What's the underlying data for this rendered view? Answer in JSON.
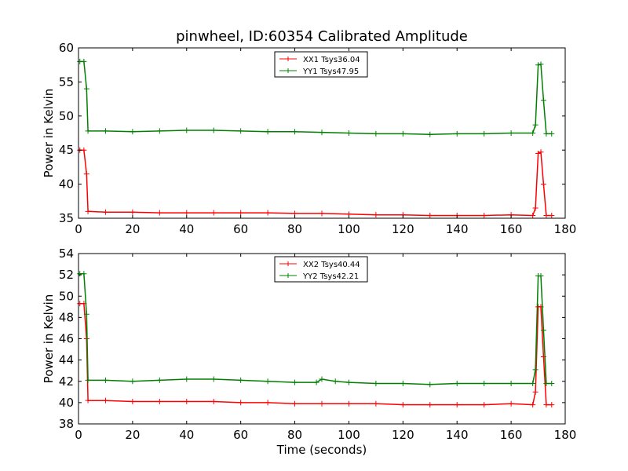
{
  "figure_title": "pinwheel, ID:60354 Calibrated Amplitude",
  "colors": {
    "red": "#ff0000",
    "green": "#008000"
  },
  "chart_data": [
    {
      "type": "line",
      "title": "pinwheel, ID:60354 Calibrated Amplitude",
      "xlabel": "",
      "ylabel": "Power in Kelvin",
      "xlim": [
        0,
        180
      ],
      "ylim": [
        35,
        60
      ],
      "xticks": [
        0,
        20,
        40,
        60,
        80,
        100,
        120,
        140,
        160,
        180
      ],
      "yticks": [
        35,
        40,
        45,
        50,
        55,
        60
      ],
      "grid": false,
      "legend_position": "top-center",
      "marker": "+",
      "series": [
        {
          "name": "XX1 Tsys36.04",
          "color": "#ff0000",
          "x": [
            0.5,
            2,
            3,
            3.5,
            10,
            20,
            30,
            40,
            50,
            60,
            70,
            80,
            90,
            100,
            110,
            120,
            130,
            140,
            150,
            160,
            168,
            169,
            170,
            171,
            172,
            173,
            175
          ],
          "y": [
            45,
            45,
            41.5,
            36,
            35.9,
            35.9,
            35.8,
            35.8,
            35.8,
            35.8,
            35.8,
            35.7,
            35.7,
            35.6,
            35.5,
            35.5,
            35.4,
            35.4,
            35.4,
            35.5,
            35.4,
            36.5,
            44.5,
            44.7,
            40,
            35.4,
            35.4
          ]
        },
        {
          "name": "YY1 Tsys47.95",
          "color": "#008000",
          "x": [
            0.5,
            2,
            3,
            3.5,
            10,
            20,
            30,
            40,
            50,
            60,
            70,
            80,
            90,
            100,
            110,
            120,
            130,
            140,
            150,
            160,
            168,
            169,
            170,
            171,
            172,
            173,
            175
          ],
          "y": [
            58,
            58,
            54,
            47.8,
            47.8,
            47.7,
            47.8,
            47.9,
            47.9,
            47.8,
            47.7,
            47.7,
            47.6,
            47.5,
            47.4,
            47.4,
            47.3,
            47.4,
            47.4,
            47.5,
            47.5,
            48.7,
            57.5,
            57.6,
            52.3,
            47.4,
            47.4
          ]
        }
      ]
    },
    {
      "type": "line",
      "title": "",
      "xlabel": "Time (seconds)",
      "ylabel": "Power in Kelvin",
      "xlim": [
        0,
        180
      ],
      "ylim": [
        38,
        54
      ],
      "xticks": [
        0,
        20,
        40,
        60,
        80,
        100,
        120,
        140,
        160,
        180
      ],
      "yticks": [
        38,
        40,
        42,
        44,
        46,
        48,
        50,
        52,
        54
      ],
      "grid": false,
      "legend_position": "top-center",
      "marker": "+",
      "series": [
        {
          "name": "XX2 Tsys40.44",
          "color": "#ff0000",
          "x": [
            0.5,
            2,
            3,
            3.5,
            10,
            20,
            30,
            40,
            50,
            60,
            70,
            80,
            90,
            100,
            110,
            120,
            130,
            140,
            150,
            160,
            168,
            169,
            170,
            171,
            172,
            173,
            175
          ],
          "y": [
            49.3,
            49.3,
            46,
            40.2,
            40.2,
            40.1,
            40.1,
            40.1,
            40.1,
            40.0,
            40.0,
            39.9,
            39.9,
            39.9,
            39.9,
            39.8,
            39.8,
            39.8,
            39.8,
            39.9,
            39.8,
            41,
            49.0,
            49.0,
            44.3,
            39.8,
            39.8
          ]
        },
        {
          "name": "YY2 Tsys42.21",
          "color": "#008000",
          "x": [
            0.5,
            2,
            3,
            3.5,
            10,
            20,
            30,
            40,
            50,
            60,
            70,
            80,
            88,
            90,
            95,
            100,
            110,
            120,
            130,
            140,
            150,
            160,
            168,
            169,
            170,
            171,
            172,
            173,
            175
          ],
          "y": [
            52.1,
            52.1,
            48.3,
            42.1,
            42.1,
            42.0,
            42.1,
            42.2,
            42.2,
            42.1,
            42.0,
            41.9,
            41.9,
            42.2,
            42.0,
            41.9,
            41.8,
            41.8,
            41.7,
            41.8,
            41.8,
            41.8,
            41.8,
            43.1,
            51.9,
            51.9,
            46.8,
            41.8,
            41.8
          ]
        }
      ]
    }
  ]
}
